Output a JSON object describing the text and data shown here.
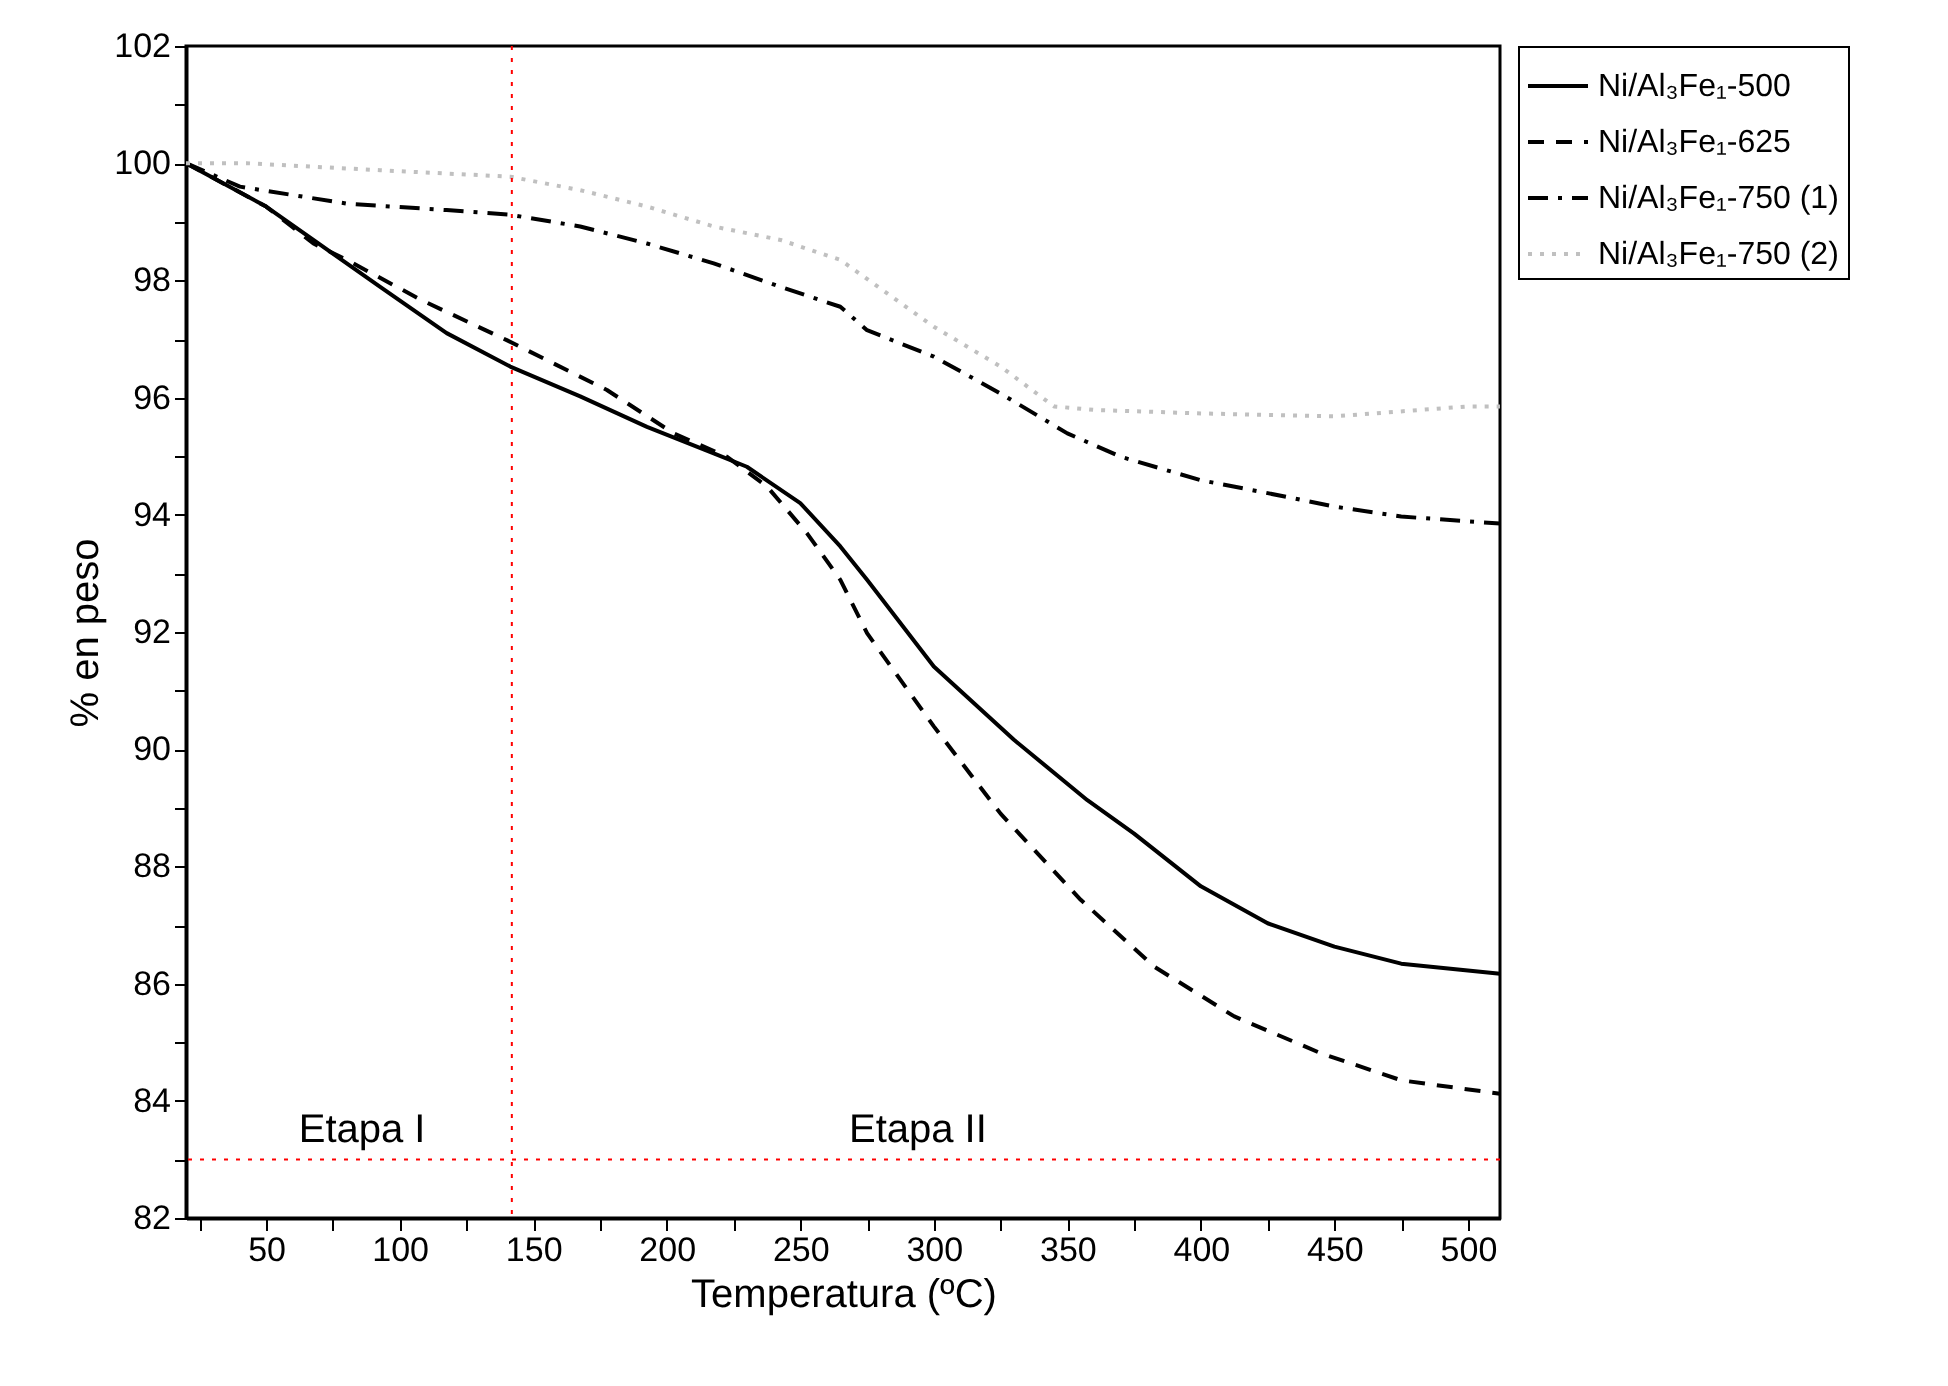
{
  "chart_data": {
    "type": "line",
    "xlabel": "Temperatura (ºC)",
    "ylabel": "% en peso",
    "xlim": [
      20,
      512
    ],
    "ylim": [
      82,
      102
    ],
    "xticks": [
      {
        "value": 25,
        "label": null
      },
      50,
      {
        "value": 75,
        "label": null
      },
      100,
      {
        "value": 125,
        "label": null
      },
      150,
      {
        "value": 175,
        "label": null
      },
      200,
      {
        "value": 225,
        "label": null
      },
      250,
      {
        "value": 275,
        "label": null
      },
      300,
      {
        "value": 325,
        "label": null
      },
      350,
      {
        "value": 375,
        "label": null
      },
      400,
      {
        "value": 425,
        "label": null
      },
      450,
      {
        "value": 475,
        "label": null
      },
      500
    ],
    "yticks": [
      82,
      {
        "value": 83,
        "label": null
      },
      84,
      {
        "value": 85,
        "label": null
      },
      86,
      {
        "value": 87,
        "label": null
      },
      88,
      {
        "value": 89,
        "label": null
      },
      90,
      {
        "value": 91,
        "label": null
      },
      92,
      {
        "value": 93,
        "label": null
      },
      94,
      {
        "value": 95,
        "label": null
      },
      96,
      {
        "value": 97,
        "label": null
      },
      98,
      {
        "value": 99,
        "label": null
      },
      100,
      {
        "value": 101,
        "label": null
      },
      102
    ],
    "grid": false,
    "legend": "right",
    "marker": "none",
    "series": [
      {
        "name": "Ni/Al₃Fe₁-500",
        "color": "#000000",
        "line_style": "solid",
        "x": [
          20,
          50,
          67.7,
          92.7,
          117.6,
          141.4,
          167.6,
          192.6,
          217.6,
          230,
          250,
          265,
          275,
          300,
          330,
          357.5,
          375,
          400,
          425,
          450,
          475,
          512
        ],
        "values": [
          100.0,
          99.26,
          98.69,
          97.89,
          97.1,
          96.53,
          96.02,
          95.5,
          95.05,
          94.82,
          94.2,
          93.46,
          92.89,
          91.41,
          90.16,
          89.13,
          88.56,
          87.66,
          87.03,
          86.63,
          86.34,
          86.17
        ]
      },
      {
        "name": "Ni/Al₃Fe₁-625",
        "color": "#000000",
        "line_style": "dashed",
        "x": [
          20,
          50,
          67.7,
          80.2,
          107.9,
          140.1,
          177.6,
          202.6,
          222.6,
          237.6,
          252.6,
          265,
          275,
          300,
          325,
          355,
          382.5,
          412.5,
          445,
          475,
          512
        ],
        "values": [
          100.0,
          99.26,
          98.63,
          98.35,
          97.67,
          96.98,
          96.13,
          95.39,
          94.99,
          94.48,
          93.68,
          92.89,
          91.98,
          90.39,
          88.9,
          87.43,
          86.29,
          85.44,
          84.81,
          84.35,
          84.12
        ]
      },
      {
        "name": "Ni/Al₃Fe₁-750 (1)",
        "color": "#000000",
        "line_style": "dashdot",
        "x": [
          20,
          40.2,
          80.2,
          117.6,
          141.4,
          167.6,
          192.6,
          217.6,
          242.6,
          265,
          275,
          300,
          325,
          350,
          370,
          400,
          425,
          450,
          475,
          512
        ],
        "values": [
          100.0,
          99.6,
          99.31,
          99.2,
          99.12,
          98.92,
          98.63,
          98.29,
          97.89,
          97.55,
          97.15,
          96.7,
          96.07,
          95.39,
          94.99,
          94.59,
          94.37,
          94.14,
          93.97,
          93.85
        ]
      },
      {
        "name": "Ni/Al₃Fe₁-750 (2)",
        "color": "#c0c0c0",
        "line_style": "dotted",
        "x": [
          20,
          42.7,
          92.7,
          141.4,
          167.6,
          192.6,
          217.6,
          242.6,
          265,
          300,
          325,
          345,
          360,
          400,
          450,
          500,
          512
        ],
        "values": [
          100.0,
          100.0,
          99.88,
          99.77,
          99.54,
          99.26,
          98.92,
          98.69,
          98.35,
          97.21,
          96.53,
          95.85,
          95.79,
          95.73,
          95.68,
          95.85,
          95.85
        ]
      }
    ],
    "ref_lines": [
      {
        "axis": "x",
        "value": 142,
        "color": "#ff0000",
        "line_style": "dotted"
      },
      {
        "axis": "y",
        "value": 83,
        "color": "#ff0000",
        "line_style": "dotted"
      }
    ],
    "annotations": [
      "Etapa I",
      "Etapa II"
    ]
  }
}
